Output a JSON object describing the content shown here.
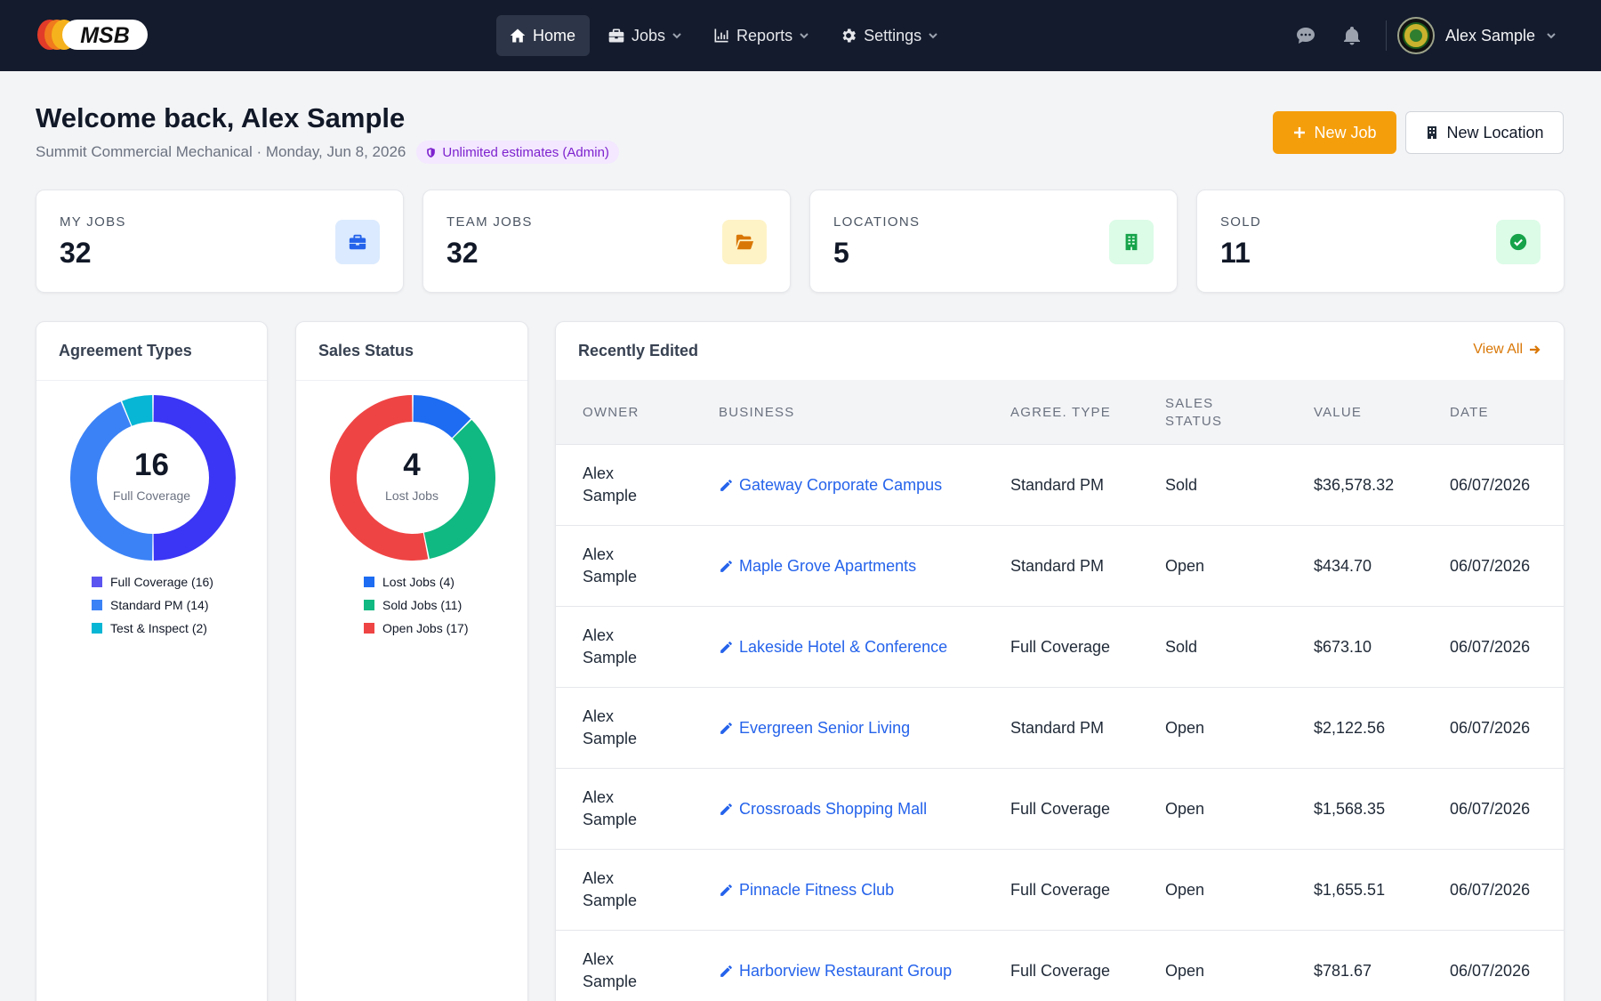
{
  "nav": {
    "logo_text": "MSB",
    "items": [
      {
        "label": "Home",
        "icon": "home-icon",
        "active": true
      },
      {
        "label": "Jobs",
        "icon": "briefcase-icon"
      },
      {
        "label": "Reports",
        "icon": "chart-icon"
      },
      {
        "label": "Settings",
        "icon": "gear-icon"
      }
    ],
    "user_name": "Alex Sample"
  },
  "header": {
    "welcome": "Welcome back, Alex Sample",
    "subline": "Summit Commercial Mechanical · Monday, Jun 8, 2026",
    "badge": "Unlimited estimates (Admin)",
    "new_job_label": "New Job",
    "new_location_label": "New Location"
  },
  "stats": [
    {
      "label": "MY JOBS",
      "value": "32",
      "icon": "briefcase-icon",
      "color": "#2563eb"
    },
    {
      "label": "TEAM JOBS",
      "value": "32",
      "icon": "folder-open-icon",
      "color": "#d97706"
    },
    {
      "label": "LOCATIONS",
      "value": "5",
      "icon": "building-icon",
      "color": "#16a34a"
    },
    {
      "label": "SOLD",
      "value": "11",
      "icon": "check-circle-icon",
      "color": "#16a34a"
    }
  ],
  "agreement_panel": {
    "title": "Agreement Types",
    "center_value": "16",
    "center_label": "Full Coverage",
    "legend": [
      "Full Coverage (16)",
      "Standard PM (14)",
      "Test & Inspect (2)"
    ]
  },
  "sales_panel": {
    "title": "Sales Status",
    "center_value": "4",
    "center_label": "Lost Jobs",
    "legend": [
      "Lost Jobs (4)",
      "Sold Jobs (11)",
      "Open Jobs (17)"
    ]
  },
  "chart_data": [
    {
      "type": "pie",
      "title": "Agreement Types",
      "categories": [
        "Full Coverage",
        "Standard PM",
        "Test & Inspect"
      ],
      "values": [
        16,
        14,
        2
      ],
      "colors": [
        "#3b35f5",
        "#3b82f6",
        "#06b6d4"
      ]
    },
    {
      "type": "pie",
      "title": "Sales Status",
      "categories": [
        "Lost Jobs",
        "Sold Jobs",
        "Open Jobs"
      ],
      "values": [
        4,
        11,
        17
      ],
      "colors": [
        "#1d6cf2",
        "#10b981",
        "#ef4444"
      ]
    }
  ],
  "recent": {
    "title": "Recently Edited",
    "view_all": "View All",
    "headers": {
      "owner": "OWNER",
      "business": "BUSINESS",
      "agree": "AGREE. TYPE",
      "status_1": "SALES",
      "status_2": "STATUS",
      "value": "VALUE",
      "date": "DATE"
    },
    "rows": [
      {
        "owner": "Alex Sample",
        "business": "Gateway Corporate Campus",
        "agree": "Standard PM",
        "status": "Sold",
        "value": "$36,578.32",
        "date": "06/07/2026"
      },
      {
        "owner": "Alex Sample",
        "business": "Maple Grove Apartments",
        "agree": "Standard PM",
        "status": "Open",
        "value": "$434.70",
        "date": "06/07/2026"
      },
      {
        "owner": "Alex Sample",
        "business": "Lakeside Hotel & Conference",
        "agree": "Full Coverage",
        "status": "Sold",
        "value": "$673.10",
        "date": "06/07/2026"
      },
      {
        "owner": "Alex Sample",
        "business": "Evergreen Senior Living",
        "agree": "Standard PM",
        "status": "Open",
        "value": "$2,122.56",
        "date": "06/07/2026"
      },
      {
        "owner": "Alex Sample",
        "business": "Crossroads Shopping Mall",
        "agree": "Full Coverage",
        "status": "Open",
        "value": "$1,568.35",
        "date": "06/07/2026"
      },
      {
        "owner": "Alex Sample",
        "business": "Pinnacle Fitness Club",
        "agree": "Full Coverage",
        "status": "Open",
        "value": "$1,655.51",
        "date": "06/07/2026"
      },
      {
        "owner": "Alex Sample",
        "business": "Harborview Restaurant Group",
        "agree": "Full Coverage",
        "status": "Open",
        "value": "$781.67",
        "date": "06/07/2026"
      }
    ]
  }
}
